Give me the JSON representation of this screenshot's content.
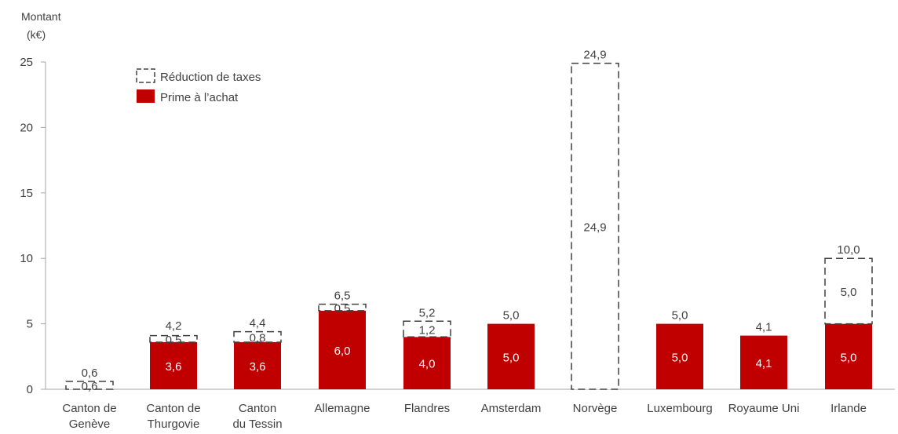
{
  "chart_data": {
    "type": "bar",
    "stacked": true,
    "ylabel_line1": "Montant",
    "ylabel_line2": "(k€)",
    "ylim": [
      0,
      25
    ],
    "yticks": [
      "0",
      "5",
      "10",
      "15",
      "20",
      "25"
    ],
    "ytick_values": [
      0,
      5,
      10,
      15,
      20,
      25
    ],
    "grid": false,
    "legend_position": "top-left",
    "categories": [
      [
        "Canton de",
        "Genève"
      ],
      [
        "Canton de",
        "Thurgovie"
      ],
      [
        "Canton",
        "du Tessin"
      ],
      [
        "Allemagne"
      ],
      [
        "Flandres"
      ],
      [
        "Amsterdam"
      ],
      [
        "Norvège"
      ],
      [
        "Luxembourg"
      ],
      [
        "Royaume Uni"
      ],
      [
        "Irlande"
      ]
    ],
    "series": [
      {
        "name": "Prime à l’achat",
        "color": "#c00000",
        "values": [
          0,
          3.6,
          3.6,
          6.0,
          4.0,
          5.0,
          0,
          5.0,
          4.1,
          5.0
        ],
        "labels": [
          "",
          "3,6",
          "3,6",
          "6,0",
          "4,0",
          "5,0",
          "",
          "5,0",
          "4,1",
          "5,0"
        ]
      },
      {
        "name": "Réduction de taxes",
        "color": "#ffffff",
        "border": "dashed",
        "values": [
          0.6,
          0.5,
          0.8,
          0.5,
          1.2,
          0,
          24.9,
          0,
          0,
          5.0
        ],
        "labels": [
          "0,6",
          "0,5",
          "0,8",
          "0,5",
          "1,2",
          "",
          "24,9",
          "",
          "",
          "5,0"
        ]
      }
    ],
    "totals": [
      0.6,
      4.2,
      4.4,
      6.5,
      5.2,
      5.0,
      24.9,
      5.0,
      4.1,
      10.0
    ],
    "total_labels": [
      "0,6",
      "4,2",
      "4,4",
      "6,5",
      "5,2",
      "5,0",
      "24,9",
      "5,0",
      "4,1",
      "10,0"
    ],
    "legend": [
      {
        "label": "Réduction de taxes",
        "style": "dashed"
      },
      {
        "label": "Prime à l’achat",
        "style": "filled",
        "color": "#c00000"
      }
    ]
  }
}
